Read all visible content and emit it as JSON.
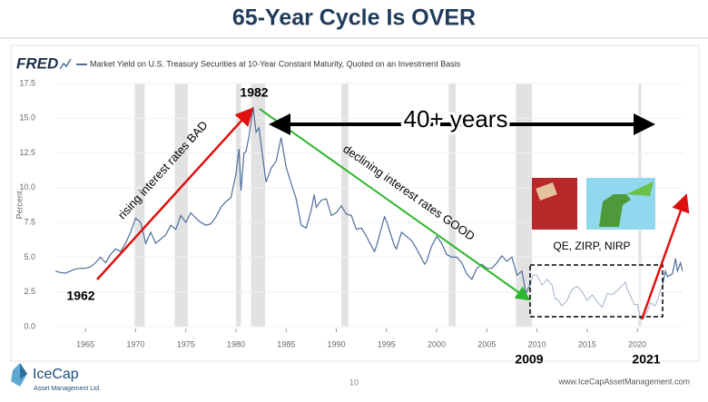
{
  "header": {
    "title": "65-Year Cycle Is OVER"
  },
  "chart_data": {
    "type": "line",
    "logo": "FRED",
    "ylabel": "Percent",
    "x": [
      1962,
      1962.5,
      1963,
      1963.5,
      1964,
      1964.5,
      1965,
      1965.5,
      1966,
      1966.5,
      1967,
      1967.5,
      1968,
      1968.5,
      1969,
      1969.5,
      1970,
      1970.5,
      1971,
      1971.5,
      1972,
      1972.5,
      1973,
      1973.5,
      1974,
      1974.5,
      1975,
      1975.5,
      1976,
      1976.5,
      1977,
      1977.5,
      1978,
      1978.5,
      1979,
      1979.5,
      1980,
      1980.3,
      1980.5,
      1980.8,
      1981,
      1981.3,
      1981.7,
      1982,
      1982.3,
      1982.7,
      1983,
      1983.5,
      1984,
      1984.5,
      1985,
      1985.5,
      1986,
      1986.5,
      1987,
      1987.5,
      1987.8,
      1988,
      1988.5,
      1989,
      1989.5,
      1990,
      1990.5,
      1991,
      1991.5,
      1992,
      1992.5,
      1993,
      1993.8,
      1994,
      1994.8,
      1995,
      1995.8,
      1996,
      1996.5,
      1997,
      1997.5,
      1998,
      1998.8,
      1999,
      1999.5,
      2000,
      2000.5,
      2001,
      2001.5,
      2002,
      2002.5,
      2003,
      2003.5,
      2004,
      2004.5,
      2005,
      2005.5,
      2006,
      2006.5,
      2007,
      2007.5,
      2008,
      2008.5,
      2008.9,
      2009.3,
      2009.6,
      2010,
      2010.5,
      2011,
      2011.5,
      2011.8,
      2012,
      2012.5,
      2013,
      2013.5,
      2014,
      2014.5,
      2015,
      2015.5,
      2016,
      2016.5,
      2017,
      2017.5,
      2018,
      2018.8,
      2019,
      2019.7,
      2020,
      2020.3,
      2020.6,
      2021,
      2021.3,
      2021.8,
      2022,
      2022.5,
      2022.8,
      2023,
      2023.5,
      2023.8,
      2024,
      2024.3,
      2024.5
    ],
    "series": [
      {
        "name": "Market Yield on U.S. Treasury Securities at 10-Year Constant Maturity, Quoted on an Investment Basis",
        "color": "#4e6d9b",
        "values": [
          4.0,
          3.9,
          3.85,
          4.0,
          4.15,
          4.2,
          4.2,
          4.3,
          4.6,
          5.0,
          4.6,
          5.2,
          5.6,
          5.4,
          6.0,
          6.8,
          7.8,
          7.5,
          6.0,
          6.8,
          6.0,
          6.3,
          6.6,
          7.3,
          7.0,
          8.0,
          7.5,
          8.2,
          7.8,
          7.5,
          7.3,
          7.4,
          7.9,
          8.6,
          9.0,
          9.3,
          11.0,
          12.8,
          9.8,
          12.5,
          12.6,
          13.7,
          15.8,
          14.0,
          14.3,
          12.0,
          10.4,
          11.4,
          11.9,
          13.6,
          11.5,
          10.3,
          9.2,
          7.3,
          7.1,
          8.4,
          9.5,
          8.6,
          9.1,
          9.2,
          8.0,
          8.2,
          8.7,
          8.1,
          8.0,
          7.0,
          7.1,
          6.5,
          5.4,
          5.8,
          7.9,
          7.6,
          5.8,
          5.6,
          6.8,
          6.5,
          6.2,
          5.6,
          4.5,
          4.7,
          5.8,
          6.5,
          6.0,
          5.2,
          5.0,
          5.0,
          4.6,
          3.8,
          3.4,
          4.2,
          4.5,
          4.2,
          4.2,
          4.6,
          5.1,
          4.7,
          5.0,
          3.7,
          4.0,
          2.4,
          3.0,
          3.7,
          3.7,
          3.0,
          3.4,
          3.0,
          2.0,
          2.0,
          1.5,
          1.9,
          2.7,
          2.9,
          2.5,
          1.9,
          2.3,
          1.8,
          1.4,
          2.4,
          2.3,
          2.6,
          3.2,
          2.7,
          1.6,
          1.6,
          0.6,
          0.6,
          1.1,
          1.7,
          1.5,
          1.9,
          3.0,
          4.0,
          3.6,
          3.8,
          4.9,
          4.0,
          4.6,
          4.0
        ]
      }
    ],
    "recessions": [
      [
        1969.9,
        1970.9
      ],
      [
        1973.9,
        1975.2
      ],
      [
        1980.0,
        1980.5
      ],
      [
        1981.5,
        1982.9
      ],
      [
        1990.5,
        1991.2
      ],
      [
        2001.2,
        2001.9
      ],
      [
        2007.9,
        2009.5
      ],
      [
        2020.1,
        2020.4
      ]
    ],
    "xlim": [
      1962,
      2024.6
    ],
    "xticks": [
      1965,
      1970,
      1975,
      1980,
      1985,
      1990,
      1995,
      2000,
      2005,
      2010,
      2015,
      2020
    ],
    "ylim": [
      0,
      17.5
    ],
    "yticks": [
      {
        "value": 0,
        "label": "0.0"
      },
      2.5,
      {
        "value": 5,
        "label": "5.0"
      },
      7.5,
      {
        "value": 10,
        "label": "10.0"
      },
      12.5,
      {
        "value": 15,
        "label": "15.0"
      },
      17.5
    ],
    "grid": true,
    "annotations": [
      "1982",
      "1962",
      "40+ years",
      "rising interest rates BAD",
      "declining interest rates GOOD",
      "QE, ZIRP, NIRP",
      "2009",
      "2021"
    ]
  },
  "footer": {
    "company": "IceCap",
    "company_sub": "Asset Management Ltd.",
    "page": "10",
    "url": "www.IceCapAssetManagement.com"
  }
}
